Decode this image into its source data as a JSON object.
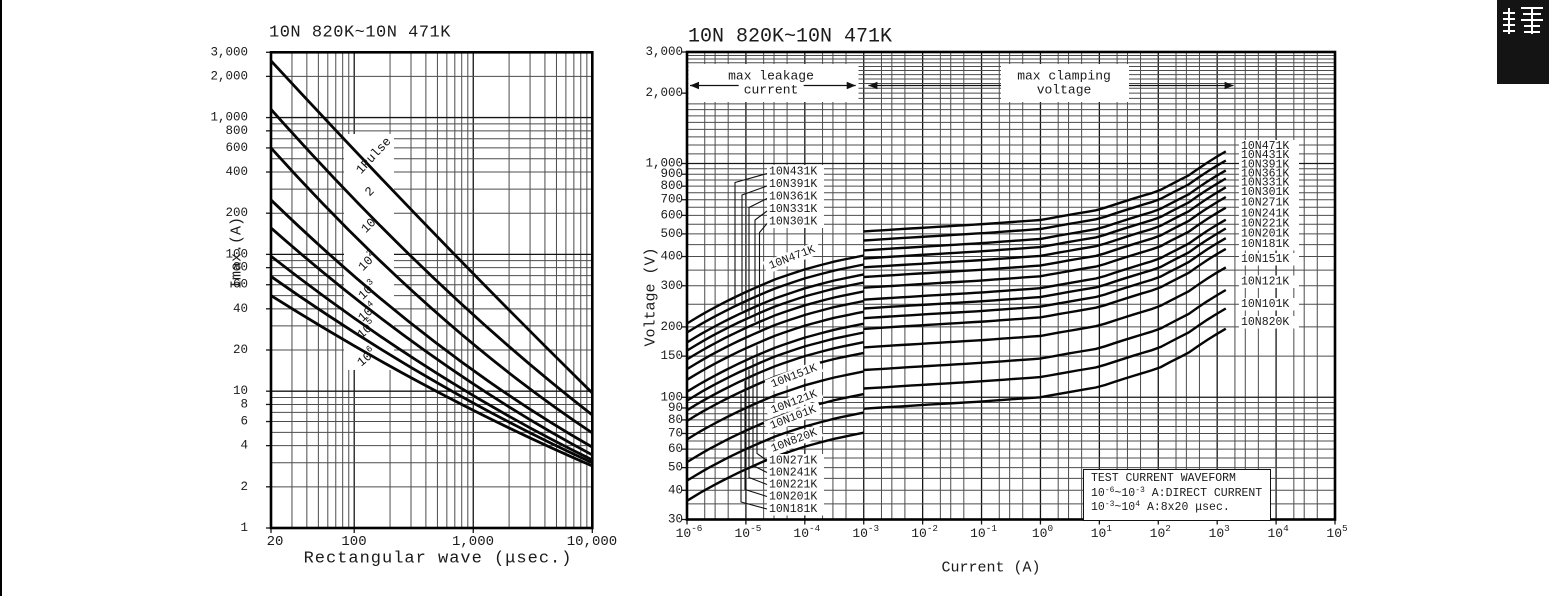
{
  "page": {
    "side_tab": {
      "char": "護",
      "bg": "#141414",
      "fg": "#ffffff"
    },
    "ink": "#1b1b1b"
  },
  "chart_data": [
    {
      "type": "line",
      "id": "pulse-rating-chart",
      "title": "10N 820K~10N 471K",
      "xlabel": "Rectangular wave (μsec.)",
      "ylabel": "Imax.(A)",
      "xscale": "log",
      "yscale": "log",
      "xlim": [
        20,
        10000
      ],
      "ylim": [
        1,
        3000
      ],
      "grid": "log-minor",
      "x_ticks": [
        {
          "v": 20,
          "label": "20"
        },
        {
          "v": 100,
          "label": "100"
        },
        {
          "v": 1000,
          "label": "1,000"
        },
        {
          "v": 10000,
          "label": "10,000"
        }
      ],
      "y_ticks": [
        {
          "v": 3000,
          "label": "3,000"
        },
        {
          "v": 2000,
          "label": "2,000"
        },
        {
          "v": 1000,
          "label": "1,000"
        },
        {
          "v": 800,
          "label": "800"
        },
        {
          "v": 600,
          "label": "600"
        },
        {
          "v": 400,
          "label": "400"
        },
        {
          "v": 200,
          "label": "200"
        },
        {
          "v": 100,
          "label": "100"
        },
        {
          "v": 80,
          "label": "80"
        },
        {
          "v": 60,
          "label": "60"
        },
        {
          "v": 40,
          "label": "40"
        },
        {
          "v": 20,
          "label": "20"
        },
        {
          "v": 10,
          "label": "10"
        },
        {
          "v": 8,
          "label": "8"
        },
        {
          "v": 6,
          "label": "6"
        },
        {
          "v": 4,
          "label": "4"
        },
        {
          "v": 2,
          "label": "2"
        },
        {
          "v": 1,
          "label": "1"
        }
      ],
      "series": [
        {
          "name": "1Pulse",
          "x": [
            20,
            10000
          ],
          "y": [
            2600,
            9.7
          ],
          "sag": 4
        },
        {
          "name": "2",
          "x": [
            20,
            10000
          ],
          "y": [
            1150,
            6.7
          ],
          "sag": 14
        },
        {
          "name": "10",
          "x": [
            20,
            10000
          ],
          "y": [
            600,
            4.95
          ],
          "sag": 18
        },
        {
          "name": "10^{2}",
          "x": [
            20,
            10000
          ],
          "y": [
            250,
            3.9
          ],
          "sag": 16
        },
        {
          "name": "10^{3}",
          "x": [
            20,
            10000
          ],
          "y": [
            156,
            3.42
          ],
          "sag": 14
        },
        {
          "name": "10^{4}",
          "x": [
            20,
            10000
          ],
          "y": [
            97,
            3.15
          ],
          "sag": 12
        },
        {
          "name": "10^{5}",
          "x": [
            20,
            10000
          ],
          "y": [
            69,
            3.0
          ],
          "sag": 10
        },
        {
          "name": "10^{6}",
          "x": [
            20,
            10000
          ],
          "y": [
            50,
            2.84
          ],
          "sag": 8
        }
      ]
    },
    {
      "type": "line",
      "id": "vi-characteristic-chart",
      "title": "10N 820K~10N 471K",
      "xlabel": "Current (A)",
      "ylabel": "Voltage (V)",
      "xscale": "log",
      "yscale": "log",
      "xlim": [
        1e-06,
        100000
      ],
      "ylim": [
        30,
        3000
      ],
      "grid": "log-minor-235",
      "x_ticks": [
        {
          "v": 1e-06,
          "label": "10^{-6}"
        },
        {
          "v": 1e-05,
          "label": "10^{-5}"
        },
        {
          "v": 0.0001,
          "label": "10^{-4}"
        },
        {
          "v": 0.001,
          "label": "10^{-3}"
        },
        {
          "v": 0.01,
          "label": "10^{-2}"
        },
        {
          "v": 0.1,
          "label": "10^{-1}"
        },
        {
          "v": 1,
          "label": "10^{0}"
        },
        {
          "v": 10,
          "label": "10^{1}"
        },
        {
          "v": 100,
          "label": "10^{2}"
        },
        {
          "v": 1000,
          "label": "10^{3}"
        },
        {
          "v": 10000,
          "label": "10^{4}"
        },
        {
          "v": 100000,
          "label": "10^{5}"
        }
      ],
      "y_ticks": [
        {
          "v": 3000,
          "label": "3,000"
        },
        {
          "v": 2000,
          "label": "2,000"
        },
        {
          "v": 1000,
          "label": "1,000"
        },
        {
          "v": 900,
          "label": "900"
        },
        {
          "v": 800,
          "label": "800"
        },
        {
          "v": 700,
          "label": "700"
        },
        {
          "v": 600,
          "label": "600"
        },
        {
          "v": 500,
          "label": "500"
        },
        {
          "v": 400,
          "label": "400"
        },
        {
          "v": 300,
          "label": "300"
        },
        {
          "v": 200,
          "label": "200"
        },
        {
          "v": 150,
          "label": "150"
        },
        {
          "v": 100,
          "label": "100"
        },
        {
          "v": 90,
          "label": "90"
        },
        {
          "v": 80,
          "label": "80"
        },
        {
          "v": 70,
          "label": "70"
        },
        {
          "v": 60,
          "label": "60"
        },
        {
          "v": 50,
          "label": "50"
        },
        {
          "v": 40,
          "label": "40"
        },
        {
          "v": 30,
          "label": "30"
        }
      ],
      "models": [
        {
          "name": "10N820K",
          "v_nominal": 82
        },
        {
          "name": "10N101K",
          "v_nominal": 100
        },
        {
          "name": "10N121K",
          "v_nominal": 120
        },
        {
          "name": "10N151K",
          "v_nominal": 150
        },
        {
          "name": "10N181K",
          "v_nominal": 180
        },
        {
          "name": "10N201K",
          "v_nominal": 200
        },
        {
          "name": "10N221K",
          "v_nominal": 220
        },
        {
          "name": "10N241K",
          "v_nominal": 240
        },
        {
          "name": "10N271K",
          "v_nominal": 270
        },
        {
          "name": "10N301K",
          "v_nominal": 300
        },
        {
          "name": "10N331K",
          "v_nominal": 330
        },
        {
          "name": "10N361K",
          "v_nominal": 360
        },
        {
          "name": "10N391K",
          "v_nominal": 390
        },
        {
          "name": "10N431K",
          "v_nominal": 430
        },
        {
          "name": "10N471K",
          "v_nominal": 470
        }
      ],
      "leakage_region": {
        "x_range": [
          1e-06,
          0.001
        ],
        "shape_logx": [
          -6,
          -5.5,
          -5,
          -4.5,
          -4,
          -3.5,
          -3
        ],
        "shape_vratio": [
          0.44,
          0.52,
          0.6,
          0.68,
          0.75,
          0.81,
          0.86
        ]
      },
      "clamping_region": {
        "x_range": [
          0.001,
          2000
        ],
        "shape_logx": [
          -3,
          -2,
          -1,
          0,
          1,
          2,
          2.5,
          3,
          3.301
        ],
        "shape_vratio": [
          1.09,
          1.13,
          1.17,
          1.22,
          1.35,
          1.62,
          1.88,
          2.28,
          2.52
        ]
      },
      "annotations": {
        "leakage_arrow": {
          "line1": "max leakage",
          "line2": "current",
          "x_from": 1e-06,
          "x_to": 0.001
        },
        "clamping_arrow": {
          "line1": "max clamping",
          "line2": "voltage",
          "x_from": 0.0012,
          "x_to": 1900
        },
        "test_box_lines": [
          "TEST CURRENT WAVEFORM",
          "10^{-6}~10^{-3} A:DIRECT CURRENT",
          "10^{-3}~10^{4} A:8x20 μsec."
        ]
      }
    }
  ]
}
